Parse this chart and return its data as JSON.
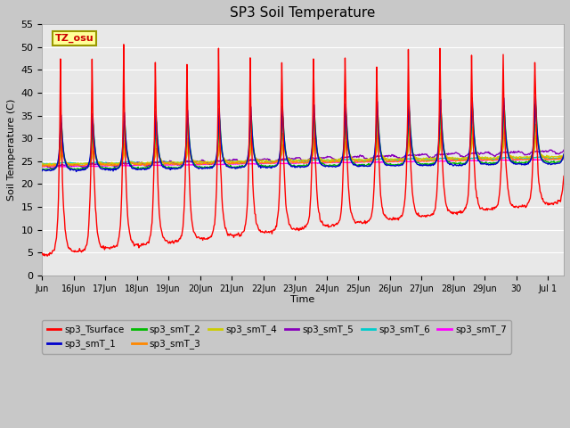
{
  "title": "SP3 Soil Temperature",
  "ylabel": "Soil Temperature (C)",
  "xlabel": "Time",
  "annotation": "TZ_osu",
  "ylim": [
    0,
    55
  ],
  "yticks": [
    0,
    5,
    10,
    15,
    20,
    25,
    30,
    35,
    40,
    45,
    50,
    55
  ],
  "xtick_labels": [
    "Jun",
    "16Jun",
    "17Jun",
    "18Jun",
    "19Jun",
    "20Jun",
    "21Jun",
    "22Jun",
    "23Jun",
    "24Jun",
    "25Jun",
    "26Jun",
    "27Jun",
    "28Jun",
    "29Jun",
    "30",
    "Jul 1"
  ],
  "xlim": [
    0,
    16.5
  ],
  "series_colors": {
    "sp3_Tsurface": "#FF0000",
    "sp3_smT_1": "#0000CC",
    "sp3_smT_2": "#00BB00",
    "sp3_smT_3": "#FF8800",
    "sp3_smT_4": "#CCCC00",
    "sp3_smT_5": "#8800BB",
    "sp3_smT_6": "#00CCCC",
    "sp3_smT_7": "#FF00FF"
  },
  "plot_bg": "#E8E8E8",
  "fig_bg": "#C8C8C8",
  "grid_color": "#FFFFFF",
  "lw": 1.0
}
